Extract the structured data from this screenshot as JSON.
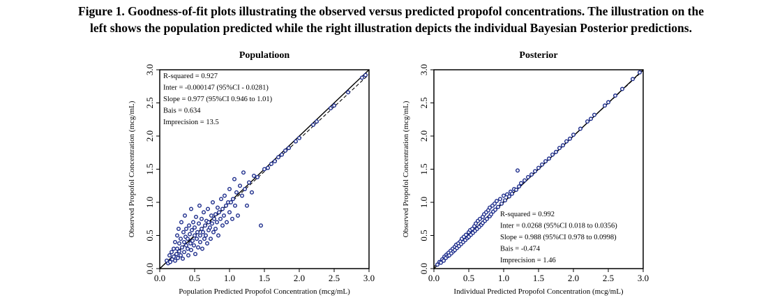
{
  "caption": {
    "line1": "Figure 1. Goodness-of-fit plots illustrating the observed versus predicted propofol concentrations. The illustration on the",
    "line2": "left shows the population predicted while the right illustration depicts the individual Bayesian Posterior predictions."
  },
  "chart_data": [
    {
      "type": "scatter",
      "title": "Populatioon",
      "xlabel": "Population Predicted Propofol Concentration (mcg/mL)",
      "ylabel": "Observed Propofol Concentration (mcg/mL)",
      "xlim": [
        0,
        3
      ],
      "ylim": [
        0,
        3
      ],
      "xticks": [
        "0.0",
        "0.5",
        "1.0",
        "1.5",
        "2.0",
        "2.5",
        "3.0"
      ],
      "yticks": [
        "0.0",
        "0.5",
        "1.0",
        "1.5",
        "2.0",
        "2.5",
        "3.0"
      ],
      "grid": false,
      "marker_color": "#1a2a8a",
      "stats": [
        "R-squared = 0.927",
        "Inter = -0.000147 (95%CI - 0.0281)",
        "Slope = 0.977 (95%CI 0.946 to 1.01)",
        "Bais = 0.634",
        "Imprecision = 13.5"
      ],
      "stats_position": "top-left",
      "lines": [
        {
          "name": "identity",
          "style": "solid",
          "intercept": 0,
          "slope": 1
        },
        {
          "name": "regression",
          "style": "dashed",
          "intercept": -0.000147,
          "slope": 0.977
        }
      ],
      "points": [
        [
          0.1,
          0.12
        ],
        [
          0.12,
          0.08
        ],
        [
          0.14,
          0.2
        ],
        [
          0.15,
          0.1
        ],
        [
          0.17,
          0.25
        ],
        [
          0.18,
          0.14
        ],
        [
          0.2,
          0.3
        ],
        [
          0.2,
          0.18
        ],
        [
          0.22,
          0.12
        ],
        [
          0.22,
          0.4
        ],
        [
          0.24,
          0.22
        ],
        [
          0.25,
          0.5
        ],
        [
          0.25,
          0.3
        ],
        [
          0.26,
          0.16
        ],
        [
          0.27,
          0.6
        ],
        [
          0.28,
          0.26
        ],
        [
          0.28,
          0.38
        ],
        [
          0.3,
          0.2
        ],
        [
          0.3,
          0.45
        ],
        [
          0.31,
          0.7
        ],
        [
          0.32,
          0.32
        ],
        [
          0.33,
          0.15
        ],
        [
          0.34,
          0.55
        ],
        [
          0.35,
          0.4
        ],
        [
          0.35,
          0.25
        ],
        [
          0.36,
          0.8
        ],
        [
          0.37,
          0.48
        ],
        [
          0.38,
          0.35
        ],
        [
          0.38,
          0.6
        ],
        [
          0.4,
          0.3
        ],
        [
          0.4,
          0.45
        ],
        [
          0.41,
          0.2
        ],
        [
          0.42,
          0.65
        ],
        [
          0.43,
          0.52
        ],
        [
          0.44,
          0.38
        ],
        [
          0.45,
          0.9
        ],
        [
          0.45,
          0.28
        ],
        [
          0.46,
          0.58
        ],
        [
          0.47,
          0.42
        ],
        [
          0.48,
          0.7
        ],
        [
          0.49,
          0.35
        ],
        [
          0.5,
          0.5
        ],
        [
          0.5,
          0.62
        ],
        [
          0.51,
          0.22
        ],
        [
          0.52,
          0.78
        ],
        [
          0.53,
          0.45
        ],
        [
          0.54,
          0.55
        ],
        [
          0.55,
          0.32
        ],
        [
          0.56,
          0.68
        ],
        [
          0.57,
          0.95
        ],
        [
          0.58,
          0.5
        ],
        [
          0.58,
          0.4
        ],
        [
          0.6,
          0.6
        ],
        [
          0.6,
          0.75
        ],
        [
          0.61,
          0.3
        ],
        [
          0.62,
          0.55
        ],
        [
          0.63,
          0.85
        ],
        [
          0.64,
          0.45
        ],
        [
          0.65,
          0.65
        ],
        [
          0.66,
          0.5
        ],
        [
          0.67,
          0.72
        ],
        [
          0.68,
          0.38
        ],
        [
          0.69,
          0.9
        ],
        [
          0.7,
          0.58
        ],
        [
          0.7,
          0.7
        ],
        [
          0.72,
          0.62
        ],
        [
          0.73,
          0.45
        ],
        [
          0.74,
          0.8
        ],
        [
          0.75,
          0.68
        ],
        [
          0.76,
          1.0
        ],
        [
          0.77,
          0.55
        ],
        [
          0.78,
          0.75
        ],
        [
          0.8,
          0.82
        ],
        [
          0.8,
          0.6
        ],
        [
          0.82,
          0.7
        ],
        [
          0.83,
          0.92
        ],
        [
          0.84,
          0.5
        ],
        [
          0.85,
          0.85
        ],
        [
          0.87,
          0.75
        ],
        [
          0.88,
          1.05
        ],
        [
          0.9,
          0.9
        ],
        [
          0.9,
          0.65
        ],
        [
          0.92,
          0.8
        ],
        [
          0.93,
          1.1
        ],
        [
          0.95,
          0.95
        ],
        [
          0.96,
          0.7
        ],
        [
          0.98,
          1.0
        ],
        [
          1.0,
          0.85
        ],
        [
          1.0,
          1.2
        ],
        [
          1.02,
          1.0
        ],
        [
          1.04,
          0.75
        ],
        [
          1.05,
          1.05
        ],
        [
          1.07,
          1.35
        ],
        [
          1.08,
          0.95
        ],
        [
          1.1,
          1.15
        ],
        [
          1.12,
          0.8
        ],
        [
          1.15,
          1.25
        ],
        [
          1.18,
          1.1
        ],
        [
          1.2,
          1.45
        ],
        [
          1.22,
          1.2
        ],
        [
          1.25,
          0.95
        ],
        [
          1.28,
          1.3
        ],
        [
          1.32,
          1.15
        ],
        [
          1.35,
          1.4
        ],
        [
          1.4,
          1.38
        ],
        [
          1.45,
          0.65
        ],
        [
          1.5,
          1.5
        ],
        [
          1.55,
          1.52
        ],
        [
          1.6,
          1.58
        ],
        [
          1.65,
          1.62
        ],
        [
          1.7,
          1.68
        ],
        [
          1.75,
          1.72
        ],
        [
          1.8,
          1.78
        ],
        [
          1.85,
          1.82
        ],
        [
          1.95,
          1.92
        ],
        [
          2.0,
          1.97
        ],
        [
          2.2,
          2.17
        ],
        [
          2.25,
          2.22
        ],
        [
          2.45,
          2.42
        ],
        [
          2.5,
          2.46
        ],
        [
          2.7,
          2.66
        ],
        [
          2.9,
          2.88
        ],
        [
          2.95,
          2.92
        ]
      ]
    },
    {
      "type": "scatter",
      "title": "Posterior",
      "xlabel": "Individual Predicted Propofol Concentration (mcg/mL)",
      "ylabel": "Observed Propofol Concentration (mcg/mL)",
      "xlim": [
        0,
        3
      ],
      "ylim": [
        0,
        3
      ],
      "xticks": [
        "0.0",
        "0.5",
        "1.0",
        "1.5",
        "2.0",
        "2.5",
        "3.0"
      ],
      "yticks": [
        "0.0",
        "0.5",
        "1.0",
        "1.5",
        "2.0",
        "2.5",
        "3.0"
      ],
      "grid": false,
      "marker_color": "#1a2a8a",
      "stats": [
        "R-squared = 0.992",
        "Inter = 0.0268 (95%CI 0.018 to 0.0356)",
        "Slope = 0.988 (95%CI 0.978 to 0.0998)",
        "Bais = -0.474",
        "Imprecision = 1.46"
      ],
      "stats_position": "bottom-right",
      "lines": [
        {
          "name": "identity",
          "style": "solid",
          "intercept": 0,
          "slope": 1
        },
        {
          "name": "regression",
          "style": "dashed",
          "intercept": 0.0268,
          "slope": 0.988
        }
      ],
      "points": [
        [
          0.05,
          0.06
        ],
        [
          0.08,
          0.1
        ],
        [
          0.1,
          0.09
        ],
        [
          0.12,
          0.14
        ],
        [
          0.14,
          0.12
        ],
        [
          0.15,
          0.18
        ],
        [
          0.17,
          0.16
        ],
        [
          0.18,
          0.21
        ],
        [
          0.2,
          0.19
        ],
        [
          0.21,
          0.24
        ],
        [
          0.22,
          0.2
        ],
        [
          0.24,
          0.27
        ],
        [
          0.25,
          0.23
        ],
        [
          0.27,
          0.3
        ],
        [
          0.28,
          0.26
        ],
        [
          0.3,
          0.33
        ],
        [
          0.3,
          0.28
        ],
        [
          0.32,
          0.36
        ],
        [
          0.33,
          0.31
        ],
        [
          0.35,
          0.38
        ],
        [
          0.36,
          0.34
        ],
        [
          0.38,
          0.41
        ],
        [
          0.39,
          0.37
        ],
        [
          0.4,
          0.45
        ],
        [
          0.42,
          0.4
        ],
        [
          0.43,
          0.48
        ],
        [
          0.45,
          0.43
        ],
        [
          0.46,
          0.51
        ],
        [
          0.48,
          0.46
        ],
        [
          0.5,
          0.55
        ],
        [
          0.5,
          0.48
        ],
        [
          0.52,
          0.58
        ],
        [
          0.53,
          0.51
        ],
        [
          0.55,
          0.6
        ],
        [
          0.56,
          0.54
        ],
        [
          0.58,
          0.64
        ],
        [
          0.59,
          0.57
        ],
        [
          0.6,
          0.68
        ],
        [
          0.62,
          0.6
        ],
        [
          0.63,
          0.72
        ],
        [
          0.65,
          0.63
        ],
        [
          0.66,
          0.75
        ],
        [
          0.68,
          0.66
        ],
        [
          0.7,
          0.78
        ],
        [
          0.7,
          0.69
        ],
        [
          0.72,
          0.82
        ],
        [
          0.73,
          0.72
        ],
        [
          0.75,
          0.85
        ],
        [
          0.76,
          0.75
        ],
        [
          0.78,
          0.88
        ],
        [
          0.8,
          0.79
        ],
        [
          0.8,
          0.92
        ],
        [
          0.82,
          0.82
        ],
        [
          0.84,
          0.95
        ],
        [
          0.85,
          0.86
        ],
        [
          0.87,
          0.98
        ],
        [
          0.88,
          0.89
        ],
        [
          0.9,
          1.02
        ],
        [
          0.92,
          0.93
        ],
        [
          0.95,
          1.05
        ],
        [
          0.97,
          0.98
        ],
        [
          1.0,
          1.1
        ],
        [
          1.02,
          1.03
        ],
        [
          1.05,
          1.12
        ],
        [
          1.08,
          1.09
        ],
        [
          1.1,
          1.16
        ],
        [
          1.12,
          1.13
        ],
        [
          1.15,
          1.2
        ],
        [
          1.18,
          1.19
        ],
        [
          1.2,
          1.48
        ],
        [
          1.22,
          1.24
        ],
        [
          1.25,
          1.29
        ],
        [
          1.3,
          1.33
        ],
        [
          1.35,
          1.38
        ],
        [
          1.4,
          1.42
        ],
        [
          1.45,
          1.47
        ],
        [
          1.5,
          1.52
        ],
        [
          1.55,
          1.57
        ],
        [
          1.6,
          1.62
        ],
        [
          1.65,
          1.66
        ],
        [
          1.7,
          1.72
        ],
        [
          1.75,
          1.76
        ],
        [
          1.8,
          1.82
        ],
        [
          1.85,
          1.86
        ],
        [
          1.9,
          1.92
        ],
        [
          1.95,
          1.96
        ],
        [
          2.0,
          2.02
        ],
        [
          2.1,
          2.11
        ],
        [
          2.2,
          2.22
        ],
        [
          2.25,
          2.26
        ],
        [
          2.3,
          2.32
        ],
        [
          2.45,
          2.46
        ],
        [
          2.5,
          2.51
        ],
        [
          2.6,
          2.61
        ],
        [
          2.7,
          2.71
        ],
        [
          2.85,
          2.86
        ],
        [
          2.95,
          2.96
        ]
      ]
    }
  ]
}
